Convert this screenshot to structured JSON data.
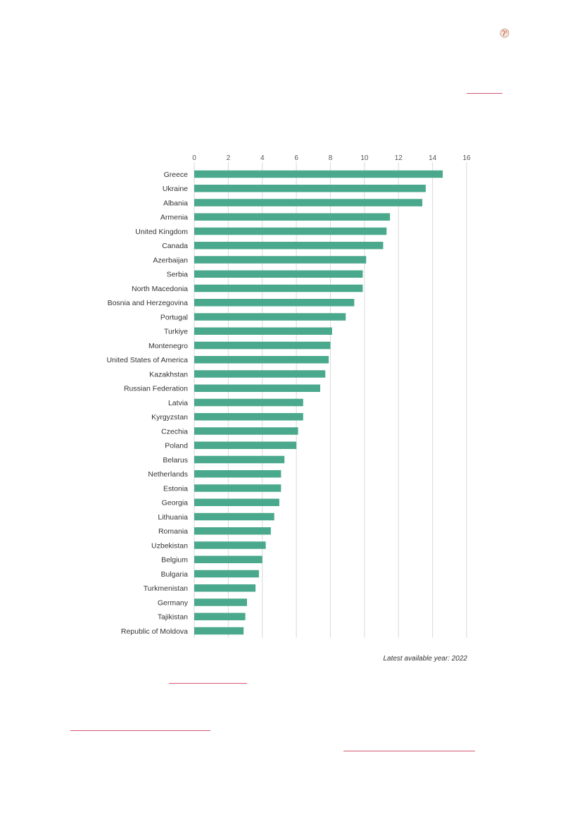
{
  "chart_data": {
    "type": "bar",
    "orientation": "horizontal",
    "categories": [
      "Greece",
      "Ukraine",
      "Albania",
      "Armenia",
      "United Kingdom",
      "Canada",
      "Azerbaijan",
      "Serbia",
      "North Macedonia",
      "Bosnia and Herzegovina",
      "Portugal",
      "Turkiye",
      "Montenegro",
      "United States of America",
      "Kazakhstan",
      "Russian Federation",
      "Latvia",
      "Kyrgyzstan",
      "Czechia",
      "Poland",
      "Belarus",
      "Netherlands",
      "Estonia",
      "Georgia",
      "Lithuania",
      "Romania",
      "Uzbekistan",
      "Belgium",
      "Bulgaria",
      "Turkmenistan",
      "Germany",
      "Tajikistan",
      "Republic of Moldova"
    ],
    "values": [
      14.6,
      13.6,
      13.4,
      11.5,
      11.3,
      11.1,
      10.1,
      9.9,
      9.9,
      9.4,
      8.9,
      8.1,
      8.0,
      7.9,
      7.7,
      7.4,
      6.4,
      6.4,
      6.1,
      6.0,
      5.3,
      5.1,
      5.1,
      5.0,
      4.7,
      4.5,
      4.2,
      4.0,
      3.8,
      3.6,
      3.1,
      3.0,
      2.9
    ],
    "xlim": [
      0,
      16
    ],
    "xticks": [
      "0",
      "2",
      "4",
      "6",
      "8",
      "10",
      "12",
      "14",
      "16"
    ],
    "grid": true,
    "axis_position": "top",
    "bar_color": "#4aa98c",
    "title": "",
    "xlabel": "",
    "ylabel": ""
  },
  "note": "Latest available year: 2022",
  "colors": {
    "link_underline": "#d3576e",
    "grid": "#d9d9d9"
  },
  "icons": {
    "logo": "globe-icon"
  }
}
